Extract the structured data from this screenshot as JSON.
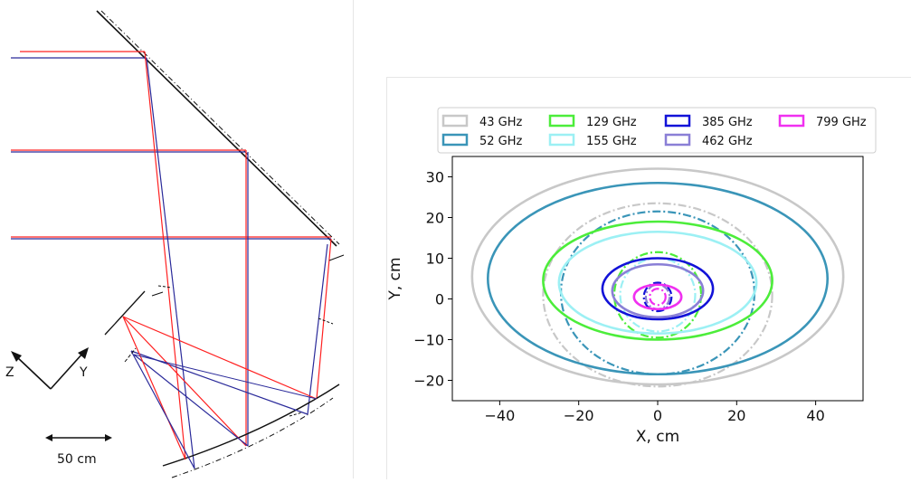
{
  "left_diagram": {
    "axis_labels": {
      "z": "Z",
      "y": "Y"
    },
    "scale_bar_label": "50 cm",
    "colors": {
      "ray_red": "#ff2020",
      "ray_blue": "#2a2a9a",
      "mirror": "#111111"
    }
  },
  "chart_data": {
    "type": "line",
    "title": "",
    "xlabel": "X,  cm",
    "ylabel": "Y,  cm",
    "xlim": [
      -52,
      52
    ],
    "ylim": [
      -25,
      35
    ],
    "xticks": [
      -40,
      -20,
      0,
      20,
      40
    ],
    "yticks": [
      -20,
      -10,
      0,
      10,
      20,
      30
    ],
    "xtick_labels": [
      "−40",
      "−20",
      "0",
      "20",
      "40"
    ],
    "ytick_labels": [
      "−20",
      "−10",
      "0",
      "10",
      "20",
      "30"
    ],
    "grid": false,
    "legend_placement": "top, above plot, 4 columns",
    "legend": [
      {
        "label": "43 GHz",
        "color": "#c8c8c8"
      },
      {
        "label": "52 GHz",
        "color": "#3a95b8"
      },
      {
        "label": "129 GHz",
        "color": "#4ced3a"
      },
      {
        "label": "155 GHz",
        "color": "#9cf0f4"
      },
      {
        "label": "385 GHz",
        "color": "#1212d8"
      },
      {
        "label": "462 GHz",
        "color": "#8a7fd6"
      },
      {
        "label": "799 GHz",
        "color": "#f030f0"
      }
    ],
    "series": [
      {
        "name": "43 GHz",
        "color": "#c8c8c8",
        "solid": {
          "cx": 0,
          "cy": 5.5,
          "rx": 47,
          "ry": 26.5
        },
        "dashdot": {
          "cx": 0,
          "cy": 1.0,
          "rx": 29,
          "ry": 22.5
        }
      },
      {
        "name": "52 GHz",
        "color": "#3a95b8",
        "solid": {
          "cx": 0,
          "cy": 5.0,
          "rx": 43,
          "ry": 23.5
        },
        "dashdot": {
          "cx": 0,
          "cy": 1.5,
          "rx": 24.5,
          "ry": 20.0
        }
      },
      {
        "name": "129 GHz",
        "color": "#4ced3a",
        "solid": {
          "cx": 0,
          "cy": 4.5,
          "rx": 29,
          "ry": 14.5
        },
        "dashdot": {
          "cx": 0,
          "cy": 1.0,
          "rx": 11,
          "ry": 10.5
        }
      },
      {
        "name": "155 GHz",
        "color": "#9cf0f4",
        "solid": {
          "cx": 0,
          "cy": 4.0,
          "rx": 25,
          "ry": 12.5
        },
        "dashdot": {
          "cx": 0,
          "cy": 1.0,
          "rx": 9.5,
          "ry": 9.0
        }
      },
      {
        "name": "385 GHz",
        "color": "#1212d8",
        "solid": {
          "cx": 0,
          "cy": 2.5,
          "rx": 14,
          "ry": 7.5
        },
        "dashdot": {
          "cx": 0,
          "cy": 0.5,
          "rx": 3.5,
          "ry": 3.5
        }
      },
      {
        "name": "462 GHz",
        "color": "#8a7fd6",
        "solid": {
          "cx": 0,
          "cy": 2.0,
          "rx": 11.5,
          "ry": 6.5
        },
        "dashdot": {
          "cx": 0,
          "cy": 0.5,
          "rx": 3.0,
          "ry": 3.0
        }
      },
      {
        "name": "799 GHz",
        "color": "#f030f0",
        "solid": {
          "cx": 0,
          "cy": 0.5,
          "rx": 6,
          "ry": 3.0
        },
        "dashdot": {
          "cx": 0,
          "cy": 0.5,
          "rx": 2.0,
          "ry": 2.0
        }
      }
    ]
  }
}
